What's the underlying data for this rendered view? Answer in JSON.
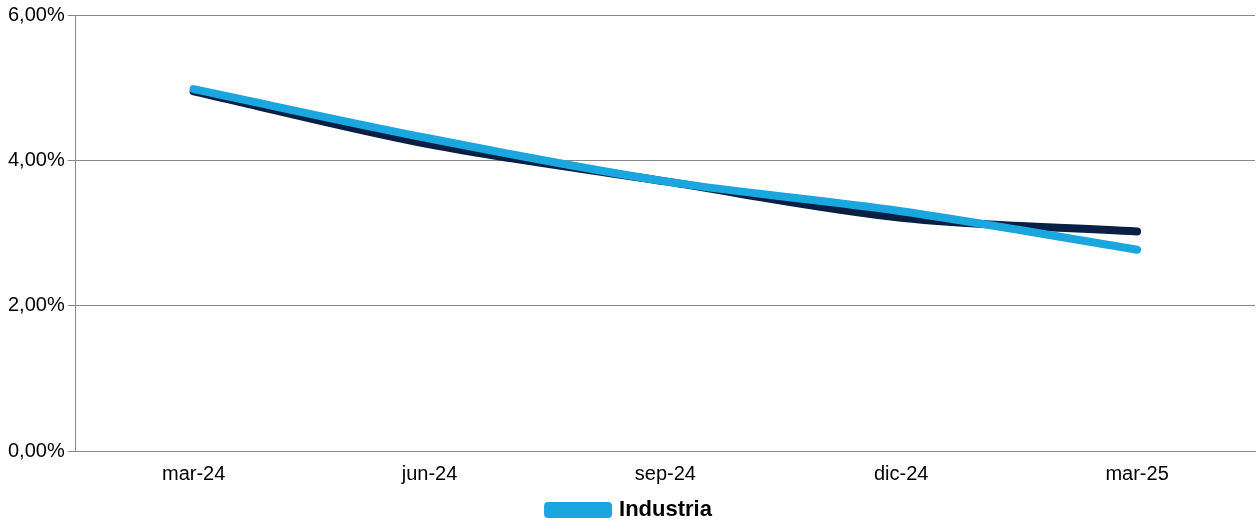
{
  "chart_data": {
    "type": "line",
    "categories": [
      "mar-24",
      "jun-24",
      "sep-24",
      "dic-24",
      "mar-25"
    ],
    "series": [
      {
        "color": "#0a1f44",
        "values": [
          4.95,
          4.22,
          3.71,
          3.21,
          3.02
        ]
      },
      {
        "name": "Industria",
        "color": "#1aa7e0",
        "values": [
          4.98,
          4.3,
          3.71,
          3.3,
          2.77
        ]
      }
    ],
    "ylim": [
      0,
      6
    ],
    "yticks": [
      {
        "value": 0,
        "label": "0,00%"
      },
      {
        "value": 2,
        "label": "2,00%"
      },
      {
        "value": 4,
        "label": "4,00%"
      },
      {
        "value": 6,
        "label": "6,00%"
      }
    ],
    "grid": "y",
    "legend": "bottom",
    "marker": "none",
    "line_style": "solid"
  }
}
